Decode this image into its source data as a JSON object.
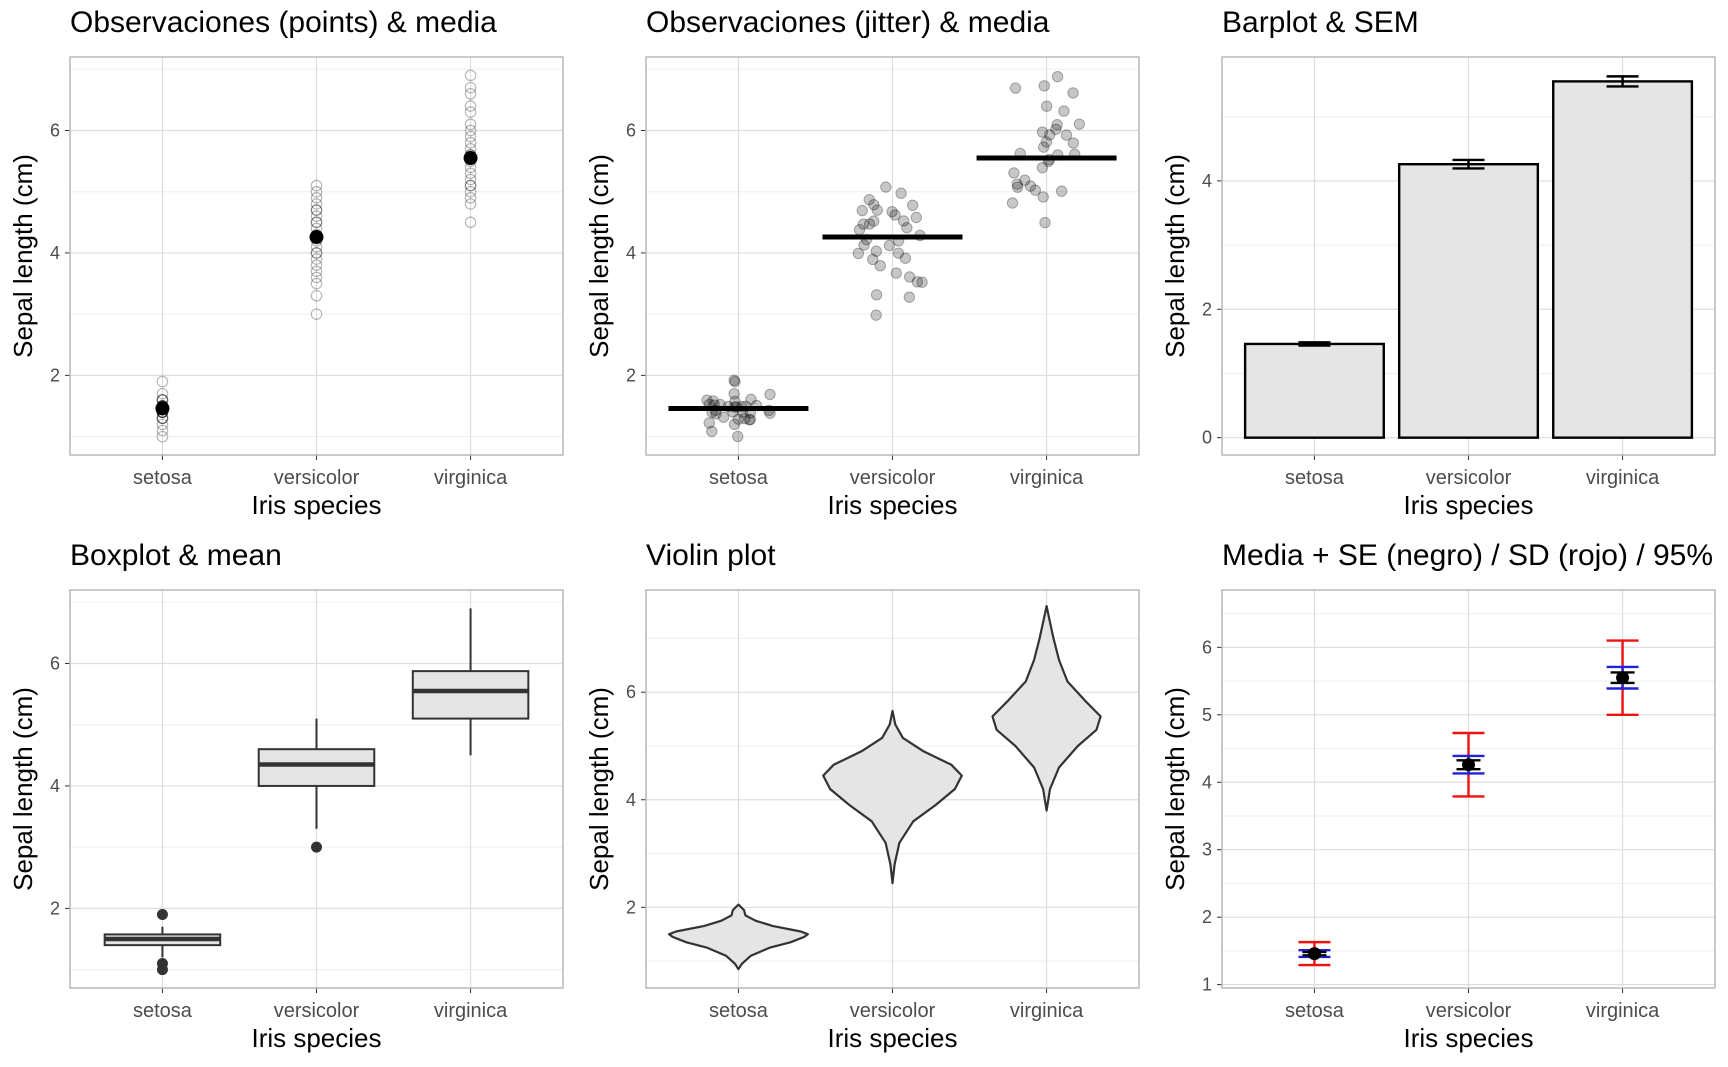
{
  "figure": {
    "background": "#ffffff"
  },
  "colors": {
    "grid_major": "#dedede",
    "grid_minor": "#eeeeee",
    "panel_border": "#b3b3b3",
    "fill_grey": "#e5e5e5",
    "red": "#ee1111",
    "blue": "#2222dd",
    "black": "#000000",
    "dark": "#333333"
  },
  "chart_data": [
    {
      "type": "scatter",
      "title": "Observaciones (points) & media",
      "xlabel": "Iris species",
      "ylabel": "Sepal length (cm)",
      "categories": [
        "setosa",
        "versicolor",
        "virginica"
      ],
      "ylim": [
        0.7,
        7.2
      ],
      "yticks": [
        2,
        4,
        6
      ],
      "grid": true,
      "marker": "hollow circle",
      "jitter": false,
      "points": [
        [
          1.0,
          1.1,
          1.2,
          1.3,
          1.3,
          1.3,
          1.4,
          1.4,
          1.4,
          1.4,
          1.4,
          1.5,
          1.5,
          1.5,
          1.5,
          1.5,
          1.5,
          1.6,
          1.6,
          1.6,
          1.7,
          1.9
        ],
        [
          3.0,
          3.3,
          3.5,
          3.6,
          3.7,
          3.8,
          3.9,
          4.0,
          4.0,
          4.1,
          4.2,
          4.3,
          4.4,
          4.5,
          4.5,
          4.6,
          4.7,
          4.7,
          4.8,
          4.9,
          5.0,
          5.1
        ],
        [
          4.5,
          4.8,
          4.9,
          5.0,
          5.1,
          5.1,
          5.2,
          5.3,
          5.4,
          5.5,
          5.6,
          5.6,
          5.7,
          5.8,
          5.9,
          6.0,
          6.1,
          6.3,
          6.4,
          6.6,
          6.7,
          6.9
        ]
      ],
      "means": [
        1.46,
        4.26,
        5.55
      ]
    },
    {
      "type": "scatter",
      "title": "Observaciones (jitter) & media",
      "xlabel": "Iris species",
      "ylabel": "Sepal length (cm)",
      "categories": [
        "setosa",
        "versicolor",
        "virginica"
      ],
      "ylim": [
        0.7,
        7.2
      ],
      "yticks": [
        2,
        4,
        6
      ],
      "grid": true,
      "marker": "filled translucent circle",
      "jitter": true,
      "points": [
        [
          1.0,
          1.1,
          1.2,
          1.2,
          1.3,
          1.3,
          1.3,
          1.3,
          1.3,
          1.4,
          1.4,
          1.4,
          1.4,
          1.4,
          1.4,
          1.4,
          1.4,
          1.5,
          1.5,
          1.5,
          1.5,
          1.5,
          1.5,
          1.5,
          1.5,
          1.5,
          1.6,
          1.6,
          1.6,
          1.6,
          1.7,
          1.7,
          1.9,
          1.9
        ],
        [
          3.0,
          3.3,
          3.3,
          3.5,
          3.5,
          3.6,
          3.7,
          3.8,
          3.9,
          3.9,
          4.0,
          4.0,
          4.0,
          4.1,
          4.1,
          4.2,
          4.2,
          4.3,
          4.4,
          4.4,
          4.5,
          4.5,
          4.5,
          4.5,
          4.6,
          4.6,
          4.7,
          4.7,
          4.7,
          4.8,
          4.8,
          4.9,
          5.0,
          5.1
        ],
        [
          4.5,
          4.8,
          4.9,
          5.0,
          5.0,
          5.1,
          5.1,
          5.1,
          5.2,
          5.3,
          5.4,
          5.5,
          5.5,
          5.6,
          5.6,
          5.6,
          5.7,
          5.8,
          5.8,
          5.9,
          5.9,
          6.0,
          6.0,
          6.1,
          6.1,
          6.3,
          6.4,
          6.6,
          6.7,
          6.7,
          6.9
        ]
      ],
      "means": [
        1.46,
        4.26,
        5.55
      ]
    },
    {
      "type": "bar",
      "title": "Barplot & SEM",
      "xlabel": "Iris species",
      "ylabel": "Sepal length (cm)",
      "categories": [
        "setosa",
        "versicolor",
        "virginica"
      ],
      "values": [
        1.46,
        4.26,
        5.55
      ],
      "sem": [
        0.025,
        0.066,
        0.078
      ],
      "ylim": [
        -0.27,
        5.93
      ],
      "yticks": [
        0,
        2,
        4
      ],
      "grid": true
    },
    {
      "type": "boxplot",
      "title": "Boxplot & mean",
      "xlabel": "Iris species",
      "ylabel": "Sepal length (cm)",
      "categories": [
        "setosa",
        "versicolor",
        "virginica"
      ],
      "boxes": [
        {
          "q1": 1.4,
          "median": 1.5,
          "q3": 1.575,
          "whisker_low": 1.2,
          "whisker_high": 1.7,
          "outliers": [
            1.0,
            1.1,
            1.9
          ]
        },
        {
          "q1": 4.0,
          "median": 4.35,
          "q3": 4.6,
          "whisker_low": 3.3,
          "whisker_high": 5.1,
          "outliers": [
            3.0
          ]
        },
        {
          "q1": 5.1,
          "median": 5.55,
          "q3": 5.875,
          "whisker_low": 4.5,
          "whisker_high": 6.9,
          "outliers": []
        }
      ],
      "ylim": [
        0.7,
        7.2
      ],
      "yticks": [
        2,
        4,
        6
      ],
      "grid": true
    },
    {
      "type": "violin",
      "title": "Violin plot",
      "xlabel": "Iris species",
      "ylabel": "Sepal length (cm)",
      "categories": [
        "setosa",
        "versicolor",
        "virginica"
      ],
      "violins": [
        {
          "profile": [
            [
              0.85,
              0.0
            ],
            [
              0.95,
              0.05
            ],
            [
              1.1,
              0.18
            ],
            [
              1.25,
              0.45
            ],
            [
              1.35,
              0.75
            ],
            [
              1.45,
              0.95
            ],
            [
              1.5,
              1.0
            ],
            [
              1.55,
              0.9
            ],
            [
              1.65,
              0.5
            ],
            [
              1.75,
              0.25
            ],
            [
              1.85,
              0.1
            ],
            [
              1.95,
              0.08
            ],
            [
              2.05,
              0.0
            ]
          ]
        },
        {
          "profile": [
            [
              2.45,
              0.0
            ],
            [
              2.8,
              0.03
            ],
            [
              3.2,
              0.1
            ],
            [
              3.6,
              0.3
            ],
            [
              3.9,
              0.62
            ],
            [
              4.2,
              0.9
            ],
            [
              4.45,
              1.0
            ],
            [
              4.65,
              0.85
            ],
            [
              4.9,
              0.45
            ],
            [
              5.15,
              0.15
            ],
            [
              5.4,
              0.04
            ],
            [
              5.65,
              0.0
            ]
          ]
        },
        {
          "profile": [
            [
              3.8,
              0.0
            ],
            [
              4.2,
              0.05
            ],
            [
              4.6,
              0.18
            ],
            [
              5.0,
              0.45
            ],
            [
              5.3,
              0.72
            ],
            [
              5.55,
              0.78
            ],
            [
              5.85,
              0.55
            ],
            [
              6.2,
              0.3
            ],
            [
              6.6,
              0.18
            ],
            [
              7.0,
              0.1
            ],
            [
              7.3,
              0.05
            ],
            [
              7.6,
              0.0
            ]
          ]
        }
      ],
      "ylim": [
        0.5,
        7.9
      ],
      "yticks": [
        2,
        4,
        6
      ],
      "grid": true
    },
    {
      "type": "errorbar",
      "title": "Media + SE (negro) / SD (rojo) / 95%",
      "xlabel": "Iris species",
      "ylabel": "Sepal length (cm)",
      "categories": [
        "setosa",
        "versicolor",
        "virginica"
      ],
      "means": [
        1.46,
        4.26,
        5.55
      ],
      "se": [
        0.025,
        0.066,
        0.078
      ],
      "sd": [
        0.17,
        0.47,
        0.55
      ],
      "ci95_halfwidth": [
        0.05,
        0.13,
        0.16
      ],
      "bar_colors": {
        "se": "black",
        "sd": "red",
        "ci95": "blue"
      },
      "ylim": [
        0.95,
        6.85
      ],
      "yticks": [
        1,
        2,
        3,
        4,
        5,
        6
      ],
      "grid": true
    }
  ]
}
